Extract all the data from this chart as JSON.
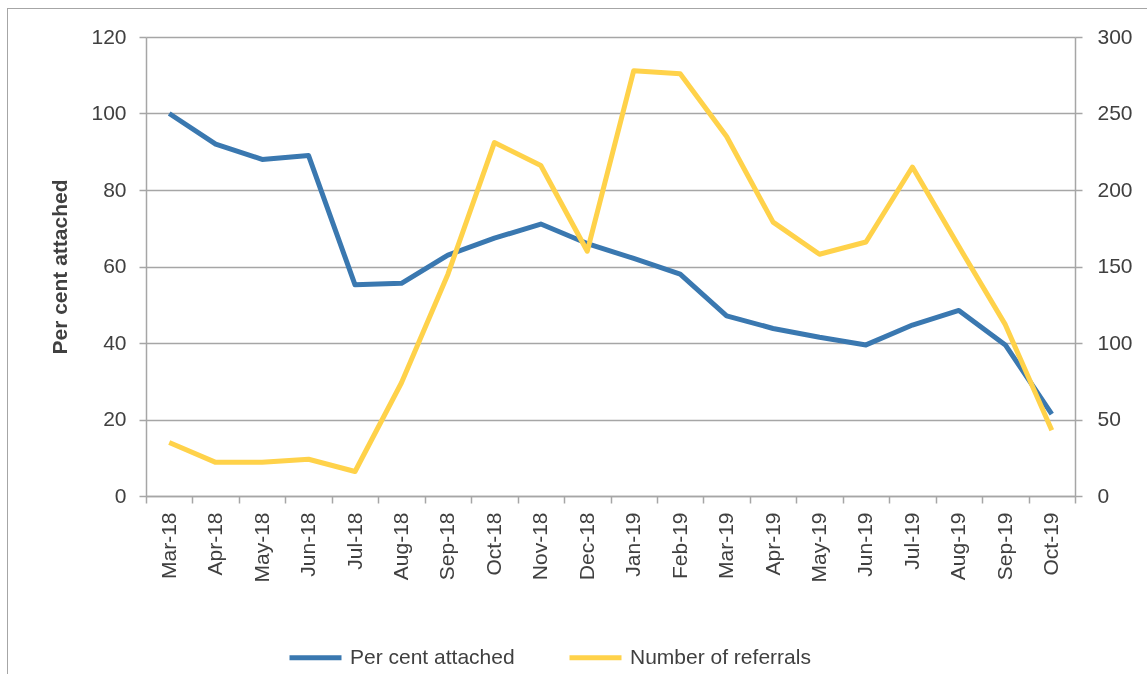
{
  "chart_data": {
    "type": "line",
    "ylabel": "Per cent attached",
    "categories": [
      "Mar-18",
      "Apr-18",
      "May-18",
      "Jun-18",
      "Jul-18",
      "Aug-18",
      "Sep-18",
      "Oct-18",
      "Nov-18",
      "Dec-18",
      "Jan-19",
      "Feb-19",
      "Mar-19",
      "Apr-19",
      "May-19",
      "Jun-19",
      "Jul-19",
      "Aug-19",
      "Sep-19",
      "Oct-19"
    ],
    "series": [
      {
        "name": "Per cent attached",
        "color": "#3a78b0",
        "values": [
          100,
          92,
          88,
          89,
          55.2,
          55.6,
          63,
          67.4,
          71.1,
          66,
          62.1,
          58,
          47.1,
          43.8,
          41.5,
          39.5,
          44.7,
          48.5,
          39.5,
          21.4
        ]
      },
      {
        "name": "Number of referrals",
        "color": "#ffd24a",
        "axis": "y2",
        "values": [
          35,
          22,
          22,
          24,
          16,
          74,
          145,
          231,
          216,
          160,
          278,
          276,
          235,
          179,
          158,
          166,
          215,
          163,
          112,
          43
        ]
      }
    ],
    "ylim": [
      0,
      120
    ],
    "yticks": [
      0,
      20,
      40,
      60,
      80,
      100,
      120
    ],
    "y2lim": [
      0,
      300
    ],
    "y2ticks": [
      0,
      50,
      100,
      150,
      200,
      250,
      300
    ],
    "grid": "y",
    "legend": "bottom"
  }
}
